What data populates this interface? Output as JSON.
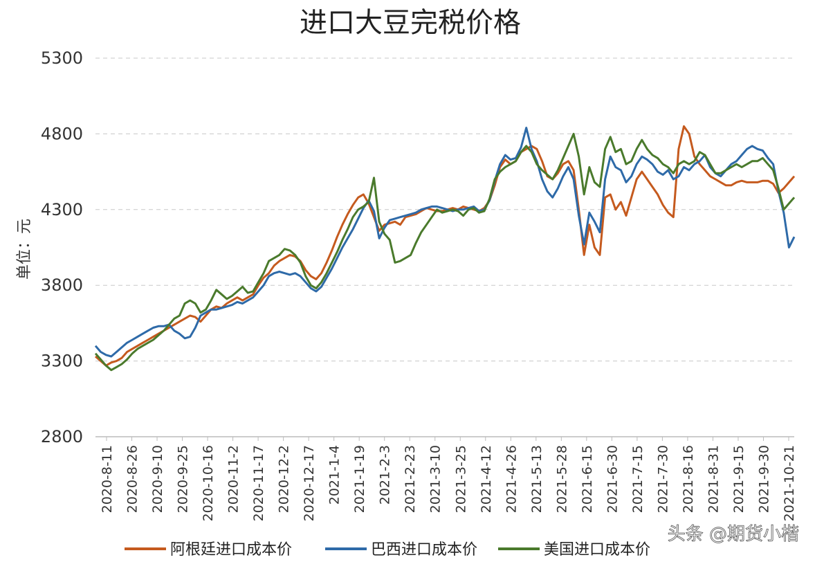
{
  "chart_data": {
    "type": "line",
    "title": "进口大豆完税价格",
    "ylabel": "单位：元",
    "xlabel": "",
    "ylim": [
      2800,
      5300
    ],
    "yticks": [
      2800,
      3300,
      3800,
      4300,
      4800,
      5300
    ],
    "grid": true,
    "legend_position": "bottom",
    "x_tick_labels": [
      "2020-8-11",
      "2020-8-26",
      "2020-9-10",
      "2020-9-25",
      "2020-10-16",
      "2020-11-2",
      "2020-11-17",
      "2020-12-2",
      "2020-12-17",
      "2021-1-4",
      "2021-1-19",
      "2021-2-3",
      "2021-2-23",
      "2021-3-10",
      "2021-3-25",
      "2021-4-12",
      "2021-4-26",
      "2021-5-13",
      "2021-5-28",
      "2021-6-15",
      "2021-6-30",
      "2021-7-15",
      "2021-7-30",
      "2021-8-16",
      "2021-8-31",
      "2021-9-15",
      "2021-9-30",
      "2021-10-21"
    ],
    "series": [
      {
        "name": "阿根廷进口成本价",
        "color": "#c55a1e",
        "values": [
          3330,
          3300,
          3270,
          3290,
          3300,
          3320,
          3360,
          3380,
          3400,
          3420,
          3440,
          3460,
          3480,
          3500,
          3520,
          3540,
          3560,
          3580,
          3600,
          3590,
          3560,
          3600,
          3640,
          3660,
          3650,
          3680,
          3700,
          3720,
          3700,
          3720,
          3740,
          3800,
          3850,
          3880,
          3930,
          3960,
          3980,
          4000,
          3990,
          3960,
          3900,
          3860,
          3840,
          3880,
          3950,
          4030,
          4120,
          4200,
          4270,
          4330,
          4380,
          4400,
          4340,
          4250,
          4160,
          4200,
          4210,
          4220,
          4200,
          4250,
          4260,
          4270,
          4290,
          4310,
          4300,
          4290,
          4290,
          4300,
          4310,
          4300,
          4320,
          4310,
          4300,
          4290,
          4310,
          4360,
          4460,
          4580,
          4630,
          4600,
          4620,
          4680,
          4700,
          4720,
          4700,
          4620,
          4520,
          4500,
          4540,
          4600,
          4620,
          4560,
          4300,
          4000,
          4200,
          4050,
          4000,
          4380,
          4400,
          4300,
          4350,
          4260,
          4380,
          4500,
          4550,
          4500,
          4450,
          4400,
          4330,
          4280,
          4250,
          4700,
          4850,
          4800,
          4650,
          4600,
          4560,
          4520,
          4500,
          4480,
          4460,
          4460,
          4480,
          4490,
          4480,
          4480,
          4480,
          4490,
          4490,
          4470,
          4410,
          4440,
          4480,
          4520
        ]
      },
      {
        "name": "巴西进口成本价",
        "color": "#2e6aa8",
        "values": [
          3400,
          3360,
          3340,
          3330,
          3360,
          3390,
          3420,
          3440,
          3460,
          3480,
          3500,
          3520,
          3530,
          3530,
          3540,
          3500,
          3480,
          3450,
          3460,
          3520,
          3600,
          3620,
          3640,
          3640,
          3650,
          3660,
          3670,
          3690,
          3680,
          3700,
          3720,
          3760,
          3800,
          3860,
          3880,
          3890,
          3880,
          3870,
          3880,
          3860,
          3820,
          3780,
          3760,
          3790,
          3850,
          3910,
          3980,
          4050,
          4110,
          4170,
          4240,
          4310,
          4360,
          4290,
          4110,
          4180,
          4230,
          4240,
          4250,
          4260,
          4270,
          4280,
          4300,
          4310,
          4320,
          4320,
          4310,
          4300,
          4290,
          4300,
          4300,
          4310,
          4320,
          4290,
          4300,
          4360,
          4490,
          4600,
          4660,
          4630,
          4640,
          4710,
          4840,
          4700,
          4620,
          4500,
          4420,
          4380,
          4440,
          4520,
          4580,
          4500,
          4260,
          4070,
          4280,
          4220,
          4150,
          4500,
          4650,
          4580,
          4560,
          4480,
          4520,
          4600,
          4650,
          4630,
          4600,
          4550,
          4530,
          4560,
          4500,
          4520,
          4580,
          4560,
          4600,
          4620,
          4660,
          4580,
          4540,
          4520,
          4560,
          4600,
          4620,
          4660,
          4700,
          4720,
          4700,
          4690,
          4640,
          4600,
          4420,
          4280,
          4050,
          4120
        ]
      },
      {
        "name": "美国进口成本价",
        "color": "#4a7a2c",
        "values": [
          3350,
          3310,
          3270,
          3240,
          3260,
          3280,
          3310,
          3350,
          3380,
          3400,
          3420,
          3440,
          3470,
          3500,
          3540,
          3580,
          3600,
          3680,
          3700,
          3680,
          3620,
          3640,
          3700,
          3770,
          3740,
          3710,
          3730,
          3760,
          3790,
          3750,
          3760,
          3820,
          3880,
          3960,
          3980,
          4000,
          4040,
          4030,
          4000,
          3950,
          3860,
          3800,
          3780,
          3820,
          3880,
          3950,
          4020,
          4100,
          4170,
          4250,
          4300,
          4320,
          4350,
          4510,
          4220,
          4140,
          4100,
          3950,
          3960,
          3980,
          4000,
          4080,
          4150,
          4200,
          4250,
          4300,
          4280,
          4290,
          4300,
          4290,
          4260,
          4300,
          4310,
          4280,
          4290,
          4370,
          4500,
          4550,
          4580,
          4600,
          4620,
          4680,
          4720,
          4680,
          4600,
          4560,
          4530,
          4500,
          4560,
          4640,
          4720,
          4800,
          4650,
          4400,
          4580,
          4480,
          4450,
          4700,
          4780,
          4680,
          4700,
          4600,
          4620,
          4700,
          4760,
          4700,
          4660,
          4640,
          4600,
          4580,
          4540,
          4600,
          4620,
          4600,
          4620,
          4680,
          4660,
          4600,
          4540,
          4540,
          4560,
          4580,
          4600,
          4580,
          4600,
          4620,
          4620,
          4640,
          4600,
          4560,
          4440,
          4300,
          4340,
          4380
        ]
      }
    ]
  },
  "watermark": "头条 @期货小楷"
}
